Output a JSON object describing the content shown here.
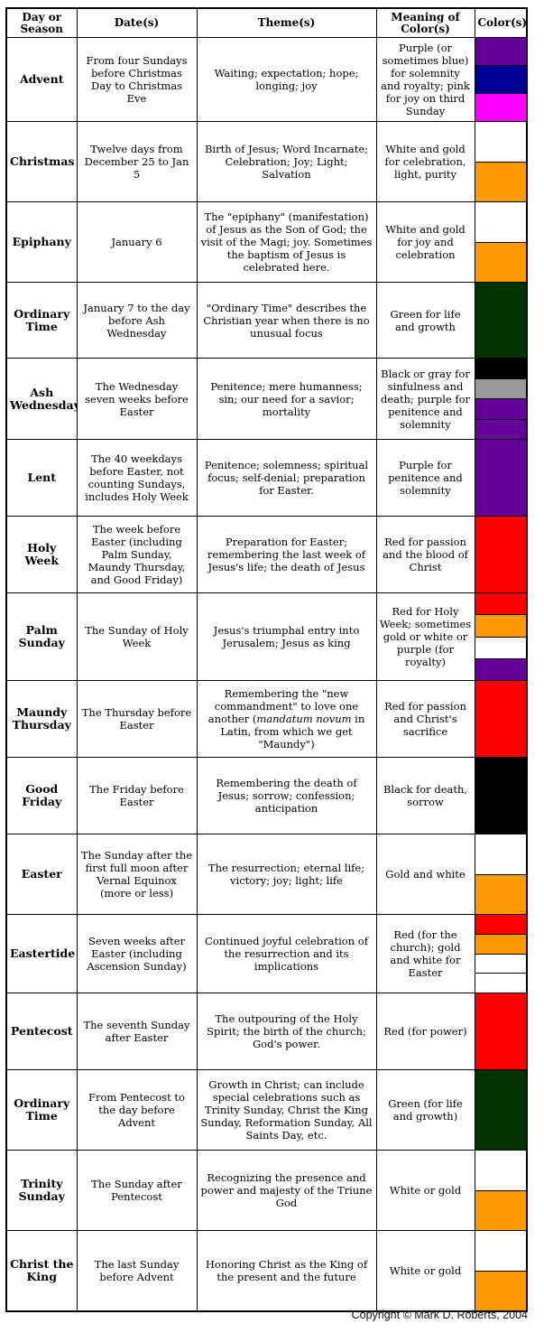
{
  "table": {
    "headers": {
      "day": "Day or Season",
      "dates": "Date(s)",
      "themes": "Theme(s)",
      "meaning": "Meaning of Color(s)",
      "colors": "Color(s)"
    },
    "rows": [
      {
        "day": "Advent",
        "dates": "From four Sundays before Christmas Day to Christmas Eve",
        "themes": "Waiting; expectation; hope; longing; joy",
        "meaning": "Purple (or sometimes blue) for solemnity and royalty; pink for joy on third Sunday",
        "colors": [
          "#660099",
          "#000099",
          "#ff00ff"
        ]
      },
      {
        "day": "Christmas",
        "dates": "Twelve days from December 25 to Jan 5",
        "themes": "Birth of Jesus; Word Incarnate; Celebration; Joy; Light; Salvation",
        "meaning": "White and gold for celebration, light, purity",
        "colors": [
          "#ffffff",
          "#ff9900"
        ]
      },
      {
        "day": "Epiphany",
        "dates": "January 6",
        "themes": "The \"epiphany\" (manifestation) of Jesus as the Son of God; the visit of the Magi; joy. Sometimes the baptism of Jesus is celebrated here.",
        "meaning": "White and gold for joy and celebration",
        "colors": [
          "#ffffff",
          "#ff9900"
        ]
      },
      {
        "day": "Ordinary Time",
        "dates": "January 7 to the day before Ash Wednesday",
        "themes": "\"Ordinary Time\" describes the Christian year when there is no unusual focus",
        "meaning": "Green for life and growth",
        "colors": [
          "#003300"
        ]
      },
      {
        "day": "Ash Wednesday",
        "dates": "The Wednesday seven weeks before Easter",
        "themes": "Penitence; mere humanness; sin; our need for a savior; mortality",
        "meaning": "Black or gray for sinfulness and death; purple for penitence and solemnity",
        "colors": [
          "#000000",
          "#999999",
          "#660099",
          "#660099"
        ]
      },
      {
        "day": "Lent",
        "dates": "The 40 weekdays before Easter, not counting Sundays, includes Holy Week",
        "themes": "Penitence; solemness; spiritual focus; self-denial; preparation for Easter.",
        "meaning": "Purple for penitence and solemnity",
        "colors": [
          "#660099"
        ]
      },
      {
        "day": "Holy Week",
        "dates": "The week before Easter (including Palm Sunday, Maundy Thursday, and Good Friday)",
        "themes": "Preparation for Easter; remembering the last week of Jesus's life; the death of Jesus",
        "meaning": "Red for passion and the blood of Christ",
        "colors": [
          "#ff0000"
        ]
      },
      {
        "day": "Palm Sunday",
        "dates": "The Sunday of Holy Week",
        "themes": "Jesus's triumphal entry into Jerusalem; Jesus as king",
        "meaning": "Red for Holy Week; sometimes gold or white or purple (for royalty)",
        "colors": [
          "#ff0000",
          "#ff9900",
          "#ffffff",
          "#660099"
        ]
      },
      {
        "day": "Maundy Thursday",
        "dates": "The Thursday before Easter",
        "themes_pre": "Remembering the \"new commandment\" to love one another (",
        "themes_em": "mandatum novum",
        "themes_post": " in Latin, from which we get \"Maundy\")",
        "meaning": "Red for passion and Christ's sacrifice",
        "colors": [
          "#ff0000"
        ]
      },
      {
        "day": "Good Friday",
        "dates": "The Friday before Easter",
        "themes": "Remembering the death of Jesus; sorrow; confession; anticipation",
        "meaning": "Black for death, sorrow",
        "colors": [
          "#000000"
        ]
      },
      {
        "day": "Easter",
        "dates": "The Sunday after the first full moon after Vernal Equinox (more or less)",
        "themes": "The resurrection; eternal life; victory; joy; light; life",
        "meaning": "Gold and white",
        "colors": [
          "#ffffff",
          "#ff9900"
        ]
      },
      {
        "day": "Eastertide",
        "dates": "Seven weeks after Easter (including Ascension Sunday)",
        "themes": "Continued joyful celebration of the resurrection and its implications",
        "meaning": "Red (for the church); gold and white for Easter",
        "colors": [
          "#ff0000",
          "#ff9900",
          "#ffffff",
          "#ffffff"
        ]
      },
      {
        "day": "Pentecost",
        "dates": "The seventh Sunday after Easter",
        "themes": "The outpouring of the Holy Spirit; the birth of the church; God's power.",
        "meaning": "Red (for power)",
        "colors": [
          "#ff0000"
        ]
      },
      {
        "day": "Ordinary Time",
        "dates": "From Pentecost to the day before Advent",
        "themes": "Growth in Christ; can include special celebrations such as Trinity Sunday, Christ the King Sunday, Reformation Sunday, All Saints Day, etc.",
        "meaning": "Green (for life and growth)",
        "colors": [
          "#003300"
        ]
      },
      {
        "day": "Trinity Sunday",
        "dates": "The Sunday after Pentecost",
        "themes": "Recognizing the presence and power and majesty of the Triune God",
        "meaning": "White or gold",
        "colors": [
          "#ffffff",
          "#ff9900"
        ]
      },
      {
        "day": "Christ the King",
        "dates": "The last Sunday before Advent",
        "themes": "Honoring Christ as the King of the present and the future",
        "meaning": "White or gold",
        "colors": [
          "#ffffff",
          "#ff9900"
        ]
      }
    ]
  },
  "copyright": "Copyright © Mark D. Roberts, 2004"
}
